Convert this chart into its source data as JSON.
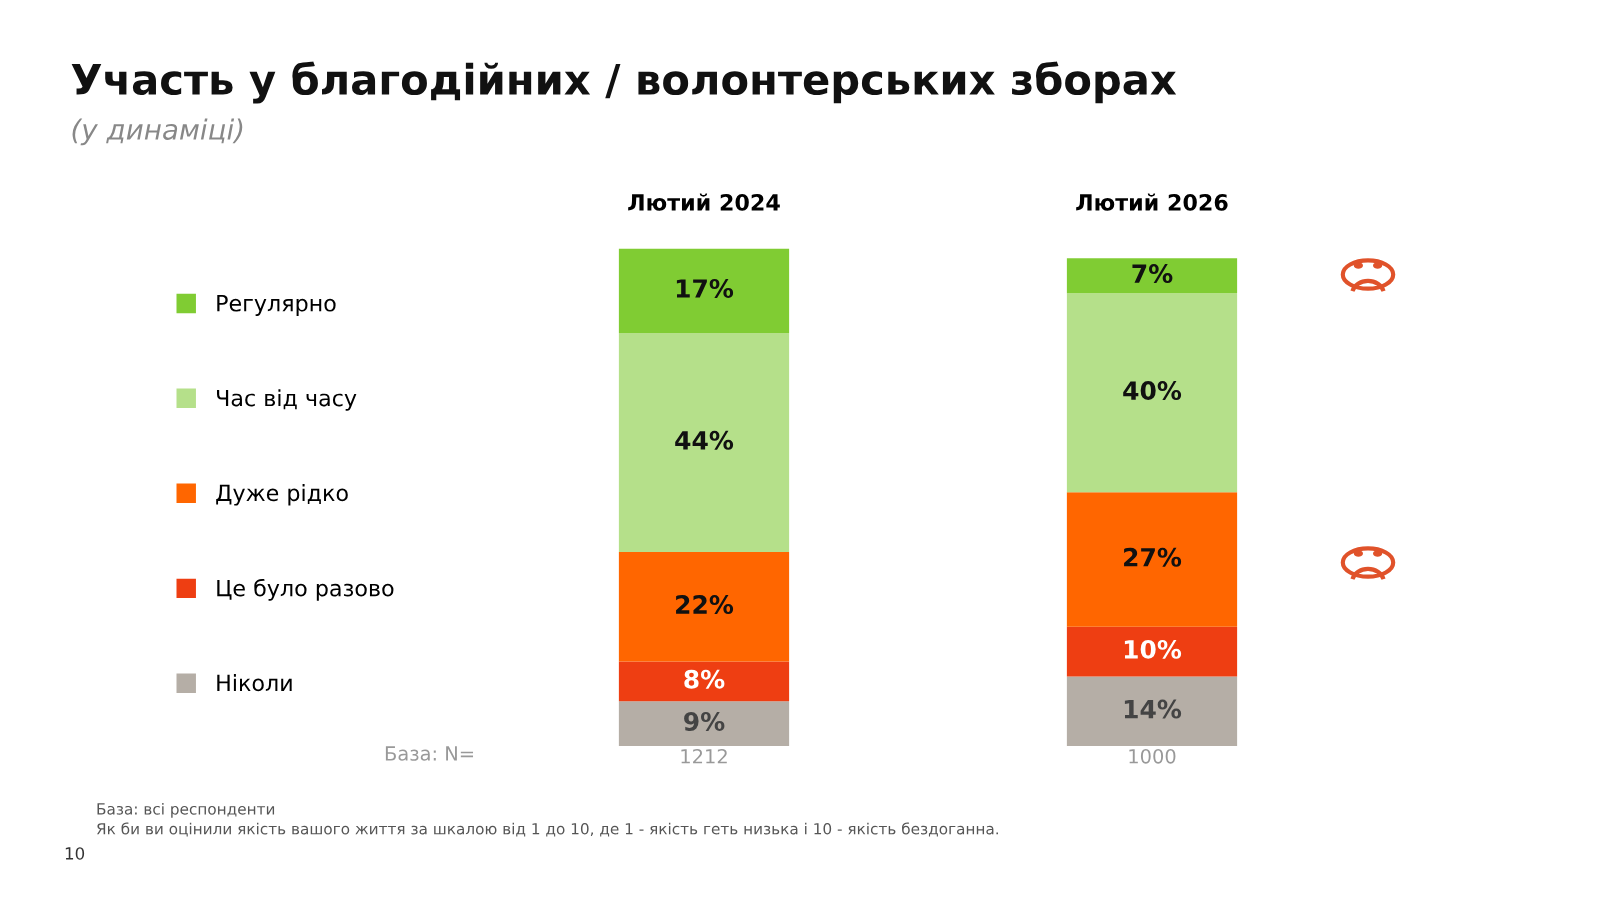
{
  "chart_data": {
    "type": "bar",
    "stacked": true,
    "title": "Участь у благодійних / волонтерських зборах",
    "subtitle": "(у динаміці)",
    "categories": [
      "Лютий 2024",
      "Лютий 2026"
    ],
    "series": [
      {
        "name": "Ніколи",
        "color": "#b5aea6",
        "values": [
          9,
          14
        ],
        "value_labels": [
          "9%",
          "14%"
        ]
      },
      {
        "name": "Це було разово",
        "color": "#ee3e12",
        "values": [
          8,
          10
        ],
        "value_labels": [
          "8%",
          "10%"
        ]
      },
      {
        "name": "Дуже рідко",
        "color": "#ff6600",
        "values": [
          22,
          27
        ],
        "value_labels": [
          "22%",
          "27%"
        ]
      },
      {
        "name": "Час від часу",
        "color": "#b5e08a",
        "values": [
          44,
          40
        ],
        "value_labels": [
          "44%",
          "40%"
        ]
      },
      {
        "name": "Регулярно",
        "color": "#80cc33",
        "values": [
          17,
          7
        ],
        "value_labels": [
          "17%",
          "7%"
        ]
      }
    ],
    "legend": "left",
    "annotations": [
      "База: N=",
      "1212",
      "1000",
      "База: всі респонденти",
      "Як би ви оцінили якість вашого життя за шкалою від 1 до 10, де 1 - якість геть низька і 10 - якість бездоганна.",
      "10"
    ]
  }
}
